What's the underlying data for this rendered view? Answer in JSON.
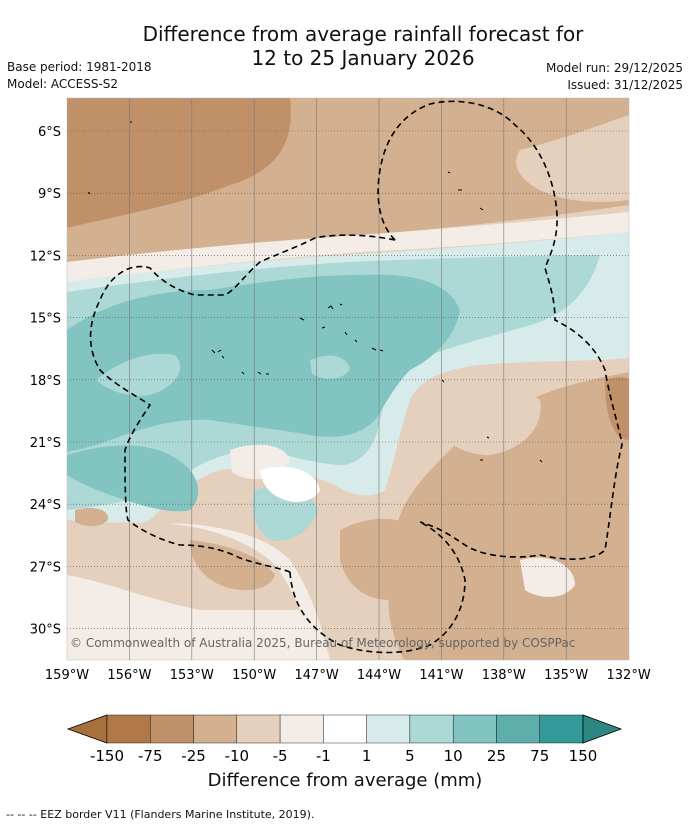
{
  "title_line1": "Difference from average rainfall forecast for",
  "title_line2": "12 to 25 January 2026",
  "base_period": "Base period: 1981-2018",
  "model": "Model: ACCESS-S2",
  "model_run": "Model run: 29/12/2025",
  "issued": "Issued: 31/12/2025",
  "copyright": "© Commonwealth of Australia 2025, Bureau of Meteorology, supported by COSPPac",
  "lat_labels": [
    "6°S",
    "9°S",
    "12°S",
    "15°S",
    "18°S",
    "21°S",
    "24°S",
    "27°S",
    "30°S"
  ],
  "lon_labels": [
    "159°W",
    "156°W",
    "153°W",
    "150°W",
    "147°W",
    "144°W",
    "141°W",
    "138°W",
    "135°W",
    "132°W"
  ],
  "colorbar": {
    "ticks": [
      "-150",
      "-75",
      "-25",
      "-10",
      "-5",
      "-1",
      "1",
      "5",
      "10",
      "25",
      "75",
      "150"
    ],
    "colors": [
      "#a8703d",
      "#b07846",
      "#c09068",
      "#d2b090",
      "#e4d0bc",
      "#f4ece6",
      "#ffffff",
      "#d6ebea",
      "#acd8d6",
      "#82c4c1",
      "#5eaeab",
      "#349a97",
      "#2e8683"
    ],
    "label": "Difference from average (mm)"
  },
  "footer": "-- -- -- EEZ border V11 (Flanders Marine Institute, 2019)."
}
